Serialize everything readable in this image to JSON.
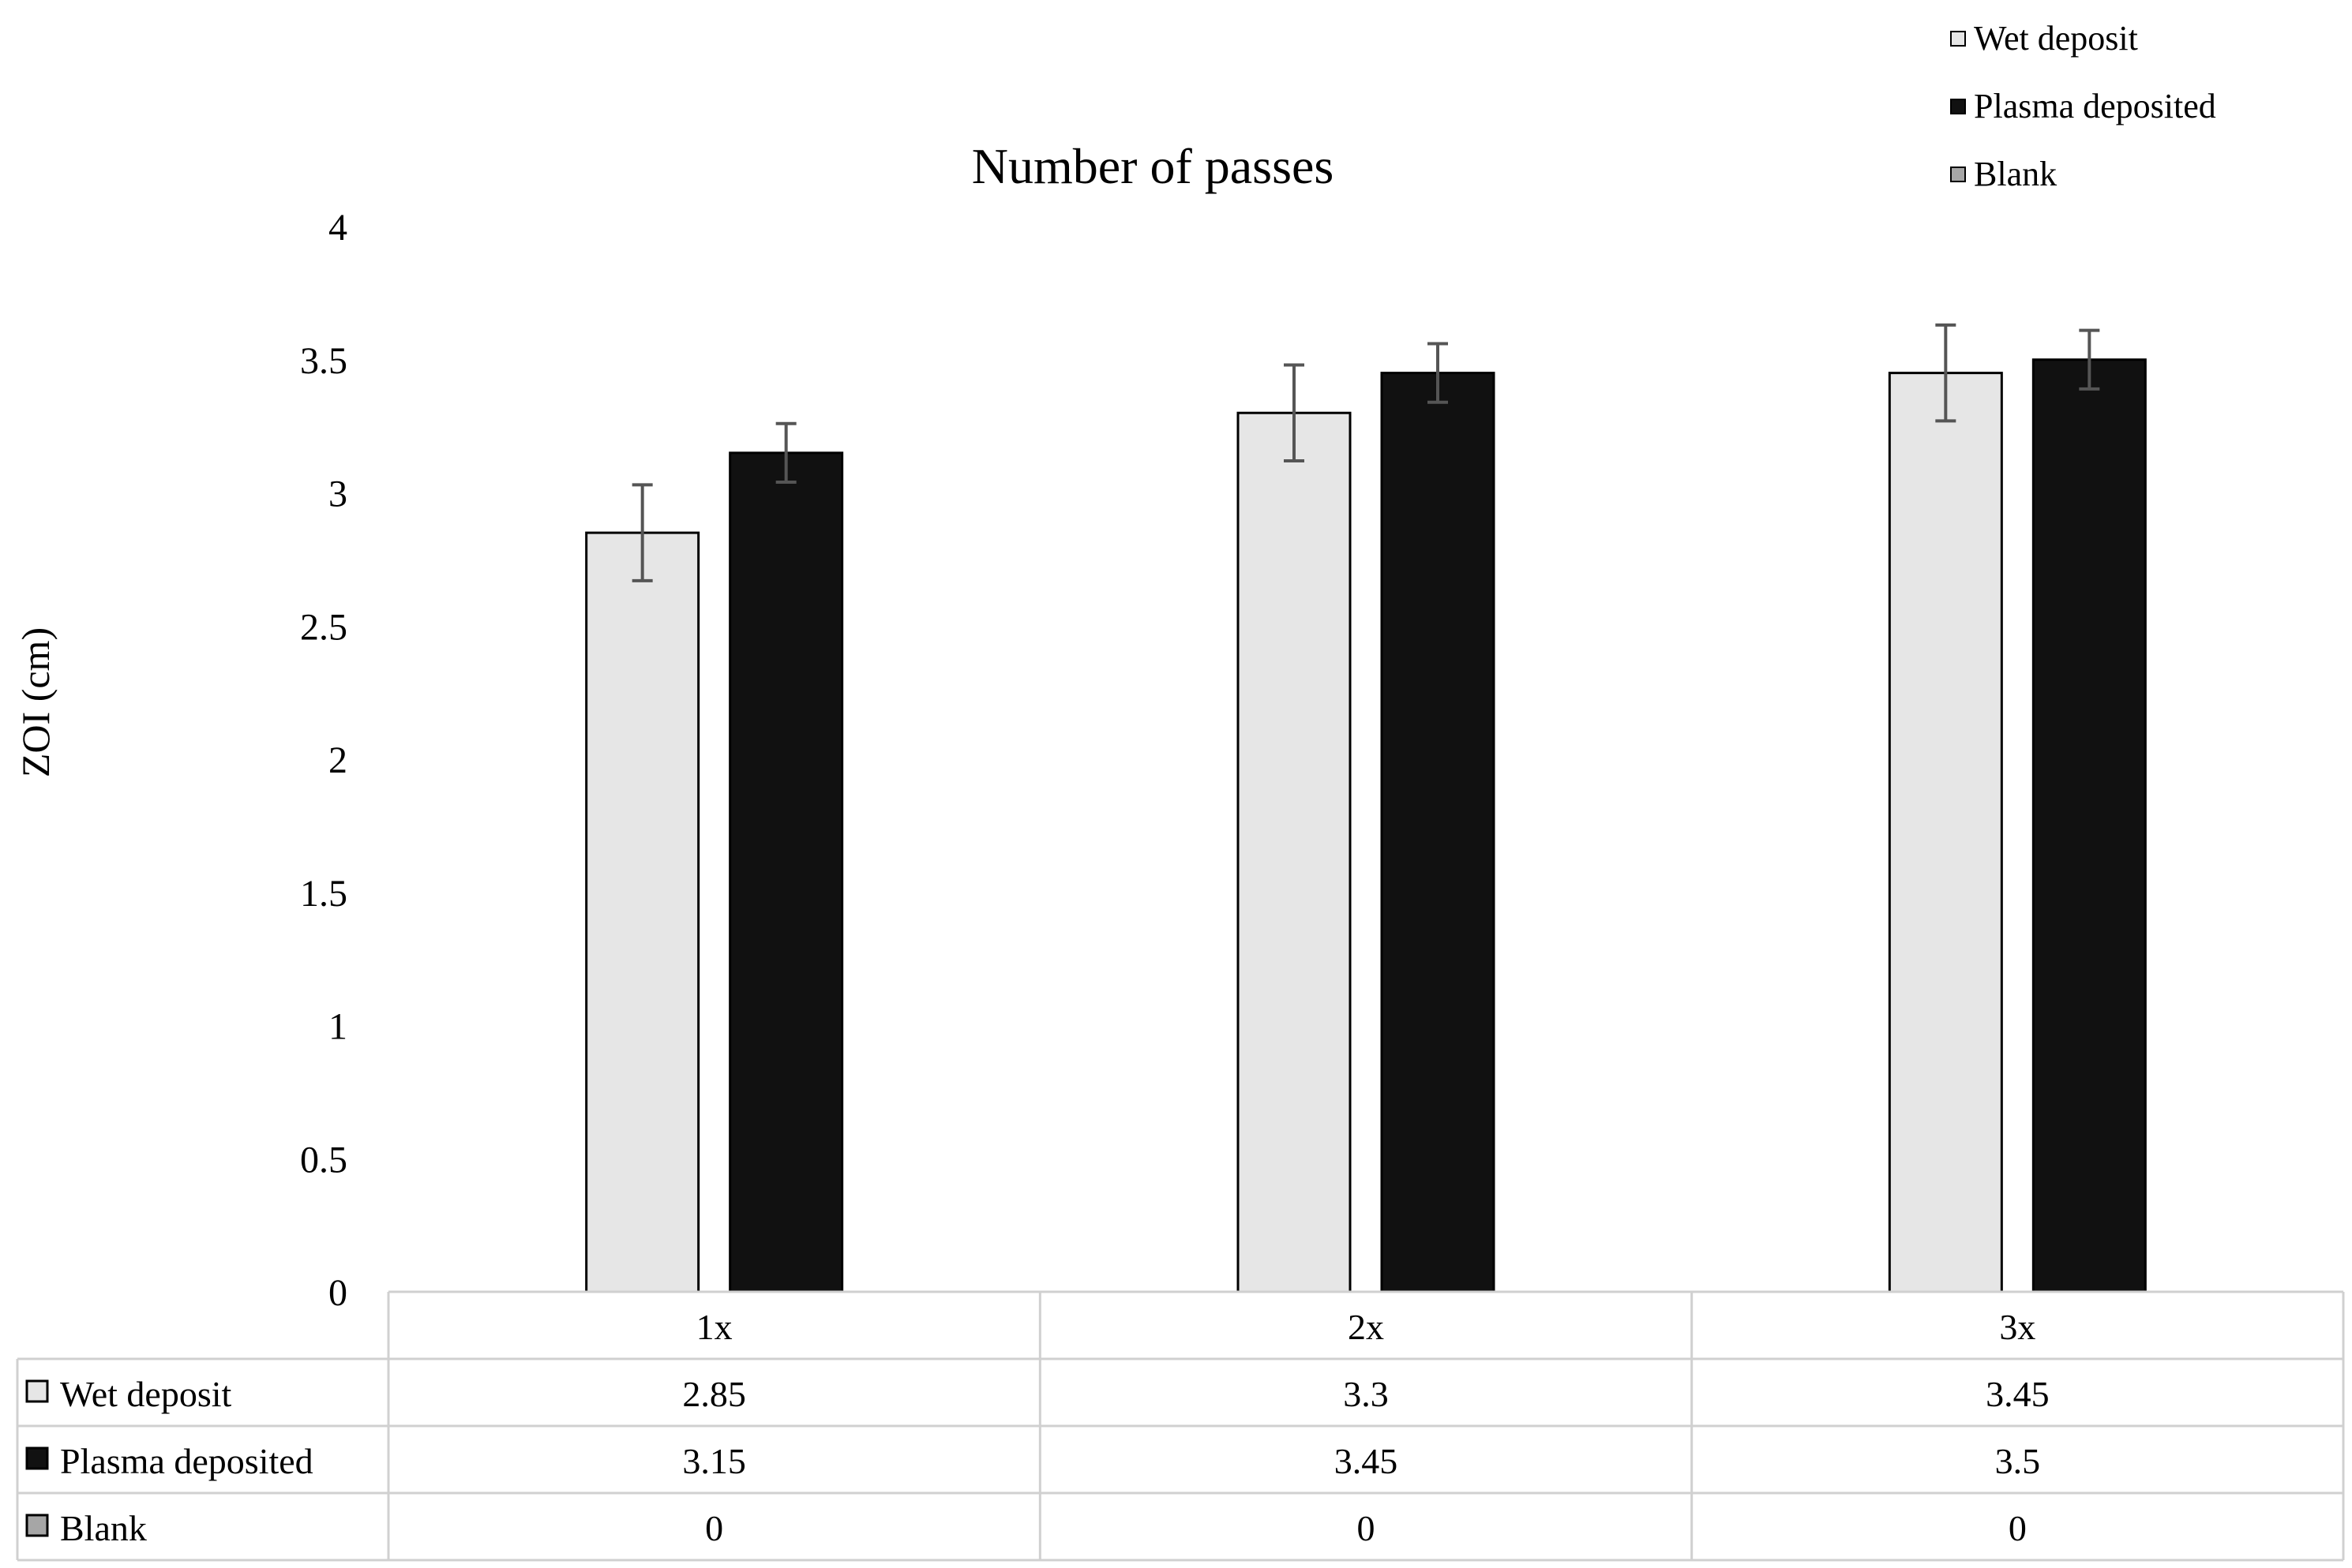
{
  "chart_data": {
    "type": "bar",
    "title": "Number of passes",
    "ylabel": "ZOI (cm)",
    "xlabel": "",
    "ylim": [
      0,
      4
    ],
    "yticks": [
      "0",
      "0.5",
      "1",
      "1.5",
      "2",
      "2.5",
      "3",
      "3.5",
      "4"
    ],
    "categories": [
      "1x",
      "2x",
      "3x"
    ],
    "series": [
      {
        "name": "Wet deposit",
        "values": [
          2.85,
          3.3,
          3.45
        ],
        "errors": [
          0.18,
          0.18,
          0.18
        ],
        "color": "#e6e6e6",
        "value_labels": [
          "2.85",
          "3.3",
          "3.45"
        ]
      },
      {
        "name": "Plasma deposited",
        "values": [
          3.15,
          3.45,
          3.5
        ],
        "errors": [
          0.11,
          0.11,
          0.11
        ],
        "color": "#111111",
        "value_labels": [
          "3.15",
          "3.45",
          "3.5"
        ]
      },
      {
        "name": "Blank",
        "values": [
          0,
          0,
          0
        ],
        "errors": [
          0,
          0,
          0
        ],
        "color": "#a6a6a6",
        "value_labels": [
          "0",
          "0",
          "0"
        ]
      }
    ],
    "legend_position": "top-right",
    "data_table": true,
    "grid": false
  }
}
